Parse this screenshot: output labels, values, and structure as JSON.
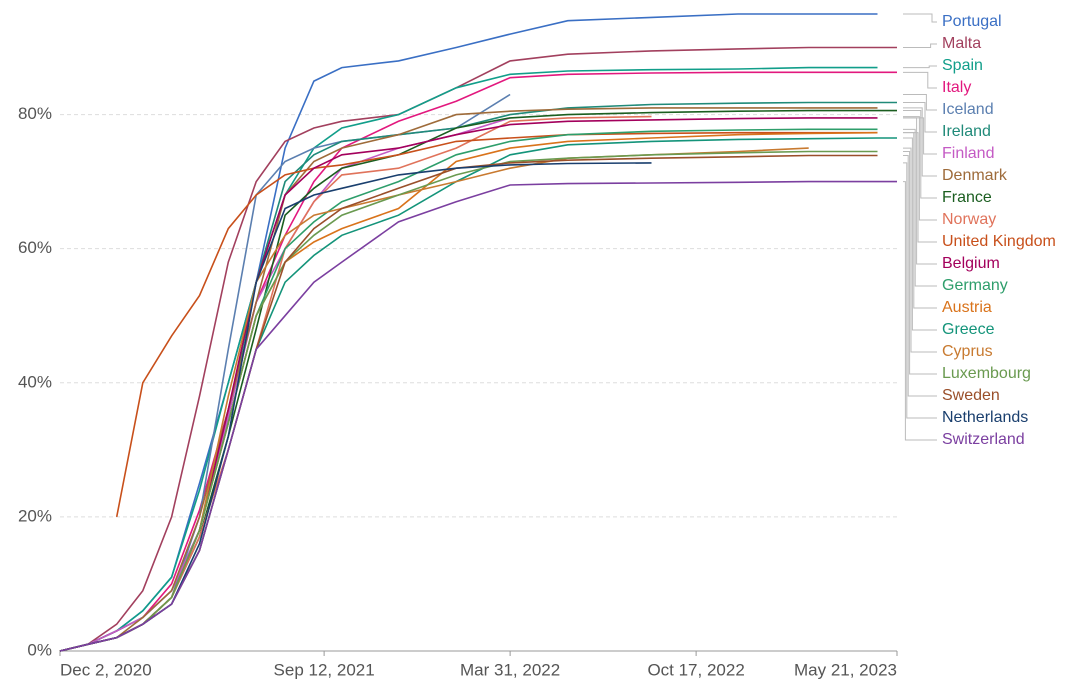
{
  "chart_data": {
    "type": "line",
    "x": [
      "2020-12-02",
      "2021-01-01",
      "2021-02-01",
      "2021-03-01",
      "2021-04-01",
      "2021-05-01",
      "2021-06-01",
      "2021-07-01",
      "2021-08-01",
      "2021-09-01",
      "2021-10-01",
      "2021-12-01",
      "2022-02-01",
      "2022-03-31",
      "2022-06-01",
      "2022-08-30",
      "2022-12-01",
      "2023-02-15",
      "2023-04-30",
      "2023-05-21"
    ],
    "xlim": [
      "2020-12-02",
      "2023-05-21"
    ],
    "xticks": [
      {
        "value": "2020-12-02",
        "label": "Dec 2, 2020"
      },
      {
        "value": "2021-09-12",
        "label": "Sep 12, 2021"
      },
      {
        "value": "2022-03-31",
        "label": "Mar 31, 2022"
      },
      {
        "value": "2022-10-17",
        "label": "Oct 17, 2022"
      },
      {
        "value": "2023-05-21",
        "label": "May 21, 2023"
      }
    ],
    "ylim": [
      0,
      95
    ],
    "yticks": [
      {
        "value": 0,
        "label": "0%"
      },
      {
        "value": 20,
        "label": "20%"
      },
      {
        "value": 40,
        "label": "40%"
      },
      {
        "value": 60,
        "label": "60%"
      },
      {
        "value": 80,
        "label": "80%"
      }
    ],
    "grid": true,
    "series": [
      {
        "name": "Portugal",
        "color": "#3a6fc4",
        "values": [
          0,
          1,
          3,
          6,
          11,
          25,
          40,
          55,
          75,
          85,
          87,
          88,
          90,
          92,
          94,
          94.5,
          95,
          95,
          95,
          null
        ]
      },
      {
        "name": "Malta",
        "color": "#a2405e",
        "values": [
          0,
          1,
          4,
          9,
          20,
          38,
          58,
          70,
          76,
          78,
          79,
          80,
          84,
          88,
          89,
          89.5,
          89.8,
          90,
          90,
          90
        ]
      },
      {
        "name": "Spain",
        "color": "#119e8a",
        "values": [
          0,
          1,
          3,
          6,
          11,
          24,
          40,
          55,
          68,
          75,
          78,
          80,
          84,
          86,
          86.5,
          86.7,
          86.8,
          87,
          87,
          null
        ]
      },
      {
        "name": "Italy",
        "color": "#e2187e",
        "values": [
          0,
          1,
          3,
          5,
          10,
          21,
          36,
          52,
          62,
          70,
          75,
          79,
          82,
          85.5,
          86,
          86.2,
          86.3,
          86.3,
          86.3,
          86.3
        ]
      },
      {
        "name": "Iceland",
        "color": "#5b7fb0",
        "values": [
          0,
          1,
          2,
          4,
          8,
          20,
          45,
          68,
          73,
          75,
          76,
          77,
          78,
          83,
          null,
          null,
          null,
          null,
          null,
          null
        ]
      },
      {
        "name": "Ireland",
        "color": "#208a79",
        "values": [
          0,
          1,
          3,
          5,
          9,
          18,
          35,
          55,
          70,
          74,
          76,
          77,
          78,
          80,
          81,
          81.5,
          81.7,
          81.8,
          81.8,
          81.8
        ]
      },
      {
        "name": "Finland",
        "color": "#c45ac4",
        "values": [
          0,
          1,
          3,
          5,
          9,
          18,
          35,
          52,
          60,
          67,
          72,
          75,
          77,
          79.5,
          null,
          null,
          null,
          null,
          null,
          null
        ]
      },
      {
        "name": "Denmark",
        "color": "#9e6b3a",
        "values": [
          0,
          1,
          2,
          5,
          9,
          20,
          36,
          52,
          68,
          73,
          75,
          77,
          80,
          80.5,
          80.8,
          81,
          81,
          81,
          81,
          null
        ]
      },
      {
        "name": "France",
        "color": "#1b5e20",
        "values": [
          0,
          1,
          2,
          4,
          8,
          17,
          32,
          48,
          65,
          69,
          72,
          74,
          78,
          79.5,
          80,
          80.3,
          80.5,
          80.6,
          80.6,
          80.6
        ]
      },
      {
        "name": "Norway",
        "color": "#e0735b",
        "values": [
          0,
          1,
          2,
          4,
          8,
          17,
          30,
          45,
          60,
          67,
          71,
          72,
          75,
          79,
          79.5,
          79.7,
          null,
          null,
          null,
          null
        ]
      },
      {
        "name": "United Kingdom",
        "color": "#c8501b",
        "values": [
          null,
          null,
          20,
          40,
          47,
          53,
          63,
          68,
          71,
          72,
          72.5,
          74,
          76,
          76.5,
          77,
          77.2,
          77.3,
          77.3,
          77.3,
          null
        ]
      },
      {
        "name": "Belgium",
        "color": "#a3005c",
        "values": [
          0,
          1,
          2,
          4,
          8,
          18,
          36,
          55,
          68,
          72,
          74,
          75,
          77,
          78.5,
          79,
          79.2,
          79.4,
          79.5,
          79.5,
          null
        ]
      },
      {
        "name": "Germany",
        "color": "#2e9e6b",
        "values": [
          0,
          1,
          2,
          4,
          8,
          18,
          34,
          50,
          60,
          64,
          67,
          70,
          74,
          76,
          77,
          77.5,
          77.7,
          77.8,
          77.8,
          null
        ]
      },
      {
        "name": "Austria",
        "color": "#d9731b",
        "values": [
          0,
          1,
          2,
          4,
          8,
          18,
          34,
          50,
          58,
          61,
          63,
          66,
          73,
          75,
          76,
          76.5,
          77,
          77.2,
          77.3,
          null
        ]
      },
      {
        "name": "Greece",
        "color": "#14947a",
        "values": [
          0,
          1,
          2,
          4,
          7,
          15,
          30,
          45,
          55,
          59,
          62,
          65,
          70,
          74,
          75.5,
          76,
          76.3,
          76.4,
          76.5,
          76.5
        ]
      },
      {
        "name": "Cyprus",
        "color": "#c87a30",
        "values": [
          0,
          1,
          2,
          4,
          8,
          18,
          38,
          55,
          62,
          65,
          66,
          68,
          70,
          72,
          73.5,
          74,
          74.5,
          75,
          null,
          null
        ]
      },
      {
        "name": "Luxembourg",
        "color": "#6a9a50",
        "values": [
          0,
          1,
          2,
          4,
          8,
          18,
          34,
          50,
          58,
          62,
          65,
          68,
          71,
          73,
          73.5,
          74,
          74.3,
          74.5,
          74.5,
          null
        ]
      },
      {
        "name": "Sweden",
        "color": "#9a4f2a",
        "values": [
          0,
          1,
          2,
          4,
          7,
          15,
          30,
          45,
          58,
          63,
          66,
          69,
          72,
          72.8,
          73.2,
          73.5,
          73.7,
          73.9,
          73.9,
          null
        ]
      },
      {
        "name": "Netherlands",
        "color": "#1a3f6e",
        "values": [
          0,
          1,
          2,
          4,
          7,
          16,
          32,
          55,
          66,
          68,
          69,
          71,
          72,
          72.5,
          72.7,
          72.8,
          null,
          null,
          null,
          null
        ]
      },
      {
        "name": "Switzerland",
        "color": "#7b3fa0",
        "values": [
          0,
          1,
          2,
          4,
          7,
          15,
          30,
          45,
          50,
          55,
          58,
          64,
          67,
          69.5,
          69.7,
          69.8,
          69.9,
          70,
          70,
          70
        ]
      }
    ]
  }
}
